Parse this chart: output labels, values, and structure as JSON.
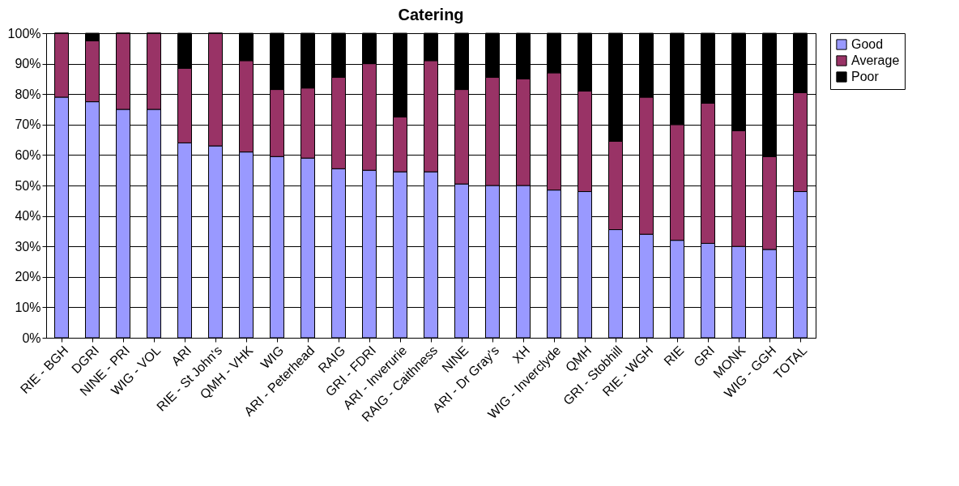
{
  "chart_data": {
    "type": "bar",
    "title": "Catering",
    "stacked": true,
    "grid": "y",
    "legend": "right",
    "categories": [
      "RIE - BGH",
      "DGRI",
      "NINE - PRI",
      "WIG - VOL",
      "ARI",
      "RIE - St John's",
      "QMH - VHK",
      "WIG",
      "ARI - Peterhead",
      "RAIG",
      "GRI - FDRI",
      "ARI - Inverurie",
      "RAIG - Caithness",
      "NINE",
      "ARI - Dr Gray's",
      "XH",
      "WIG - Inverclyde",
      "QMH",
      "GRI - Stobhill",
      "RIE - WGH",
      "RIE",
      "GRI",
      "MONK",
      "WIG - GGH",
      "TOTAL"
    ],
    "series": [
      {
        "name": "Good",
        "color": "#9999ff",
        "values": [
          79,
          77.5,
          75,
          75,
          64,
          63,
          61,
          59.5,
          59,
          55.5,
          55,
          54.5,
          54.5,
          50.5,
          50,
          50,
          48.5,
          48,
          35.5,
          34,
          32,
          31,
          30,
          29,
          48
        ]
      },
      {
        "name": "Average",
        "color": "#993366",
        "values": [
          21,
          20,
          25,
          25,
          24.5,
          37,
          30,
          22,
          23,
          30,
          35,
          18,
          36.5,
          31,
          35.5,
          35,
          38.5,
          33,
          29,
          45,
          38,
          46,
          38,
          30.5,
          32.5
        ]
      },
      {
        "name": "Poor",
        "color": "#000000",
        "values": [
          0,
          2.5,
          0,
          0,
          11.5,
          0,
          9,
          18.5,
          18,
          14.5,
          10,
          27.5,
          9,
          18.5,
          14.5,
          15,
          13,
          19,
          35.5,
          21,
          30,
          23,
          32,
          40.5,
          19.5
        ]
      }
    ],
    "ylim": [
      0,
      100
    ],
    "yticks": [
      {
        "value": 0,
        "label": "0%"
      },
      {
        "value": 10,
        "label": "10%"
      },
      {
        "value": 20,
        "label": "20%"
      },
      {
        "value": 30,
        "label": "30%"
      },
      {
        "value": 40,
        "label": "40%"
      },
      {
        "value": 50,
        "label": "50%"
      },
      {
        "value": 60,
        "label": "60%"
      },
      {
        "value": 70,
        "label": "70%"
      },
      {
        "value": 80,
        "label": "80%"
      },
      {
        "value": 90,
        "label": "90%"
      },
      {
        "value": 100,
        "label": "100%"
      }
    ]
  }
}
